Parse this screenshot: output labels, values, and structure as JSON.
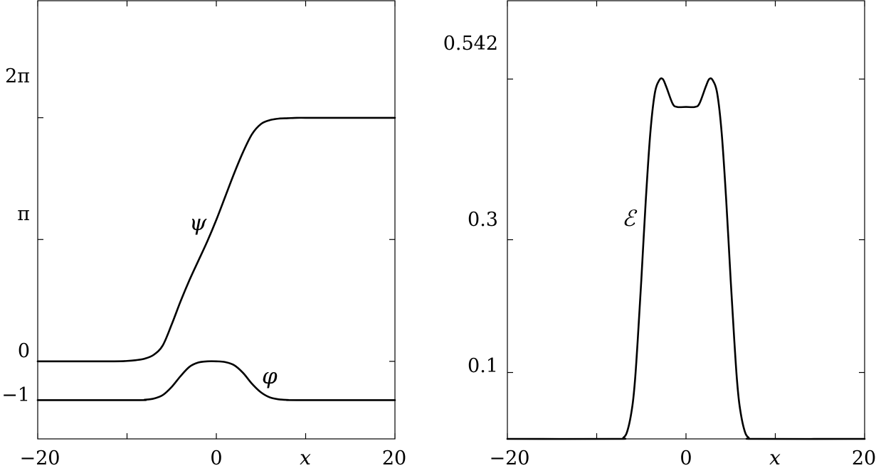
{
  "chart_data": [
    {
      "type": "line",
      "title": "",
      "xlabel": "x",
      "ylabel": "",
      "xlim": [
        -20,
        20
      ],
      "ylim": [
        -2,
        9.3
      ],
      "x_ticks": [
        -20,
        -10,
        0,
        10,
        20
      ],
      "x_tick_labels": [
        "−20",
        "",
        "0",
        "x",
        "20"
      ],
      "y_ticks": [
        -1,
        0,
        3.1416,
        6.2832
      ],
      "y_tick_labels": [
        "−1",
        "0",
        "π",
        "2π"
      ],
      "grid": false,
      "series": [
        {
          "name": "ψ",
          "x": [
            -20,
            -12,
            -10,
            -9,
            -8,
            -7,
            -6,
            -5,
            -4,
            -3,
            -2,
            -1,
            0,
            1,
            2,
            3,
            4,
            5,
            6,
            7,
            8,
            9,
            10,
            12,
            20
          ],
          "y": [
            0.0,
            0.0,
            0.01,
            0.03,
            0.07,
            0.17,
            0.41,
            0.95,
            1.55,
            2.1,
            2.6,
            3.1,
            3.65,
            4.25,
            4.85,
            5.4,
            5.86,
            6.12,
            6.22,
            6.26,
            6.27,
            6.28,
            6.28,
            6.28,
            6.28
          ]
        },
        {
          "name": "φ",
          "x": [
            -20,
            -9,
            -8,
            -7,
            -6,
            -5,
            -4,
            -3,
            -2,
            -1,
            0,
            1,
            2,
            3,
            4,
            5,
            6,
            7,
            8,
            9,
            20
          ],
          "y": [
            -1.0,
            -1.0,
            -0.99,
            -0.96,
            -0.87,
            -0.66,
            -0.38,
            -0.14,
            -0.03,
            0.0,
            0.0,
            -0.02,
            -0.1,
            -0.3,
            -0.58,
            -0.8,
            -0.93,
            -0.98,
            -0.995,
            -1.0,
            -1.0
          ]
        }
      ]
    },
    {
      "type": "line",
      "title": "",
      "xlabel": "x",
      "ylabel": "",
      "xlim": [
        -20,
        20
      ],
      "ylim": [
        0,
        0.66
      ],
      "x_ticks": [
        -20,
        -10,
        0,
        10,
        20
      ],
      "x_tick_labels": [
        "−20",
        "",
        "0",
        "x",
        "20"
      ],
      "y_ticks": [
        0.1,
        0.3,
        0.542
      ],
      "y_tick_labels": [
        "0.1",
        "0.3",
        "0.542"
      ],
      "grid": false,
      "series": [
        {
          "name": "ℰ",
          "x": [
            -20,
            -8,
            -7,
            -6.5,
            -6,
            -5.7,
            -5.4,
            -5,
            -4.5,
            -4,
            -3.5,
            -3,
            -2.6,
            -2.2,
            -1.5,
            -1,
            0,
            1,
            1.5,
            2.2,
            2.6,
            3,
            3.5,
            4,
            4.5,
            5,
            5.4,
            5.7,
            6,
            6.5,
            7,
            8,
            20
          ],
          "y": [
            0,
            0,
            0.002,
            0.015,
            0.05,
            0.09,
            0.15,
            0.24,
            0.36,
            0.46,
            0.52,
            0.54,
            0.542,
            0.53,
            0.505,
            0.5,
            0.5,
            0.5,
            0.505,
            0.53,
            0.542,
            0.54,
            0.52,
            0.46,
            0.36,
            0.24,
            0.15,
            0.09,
            0.05,
            0.015,
            0.002,
            0,
            0
          ]
        }
      ]
    }
  ]
}
